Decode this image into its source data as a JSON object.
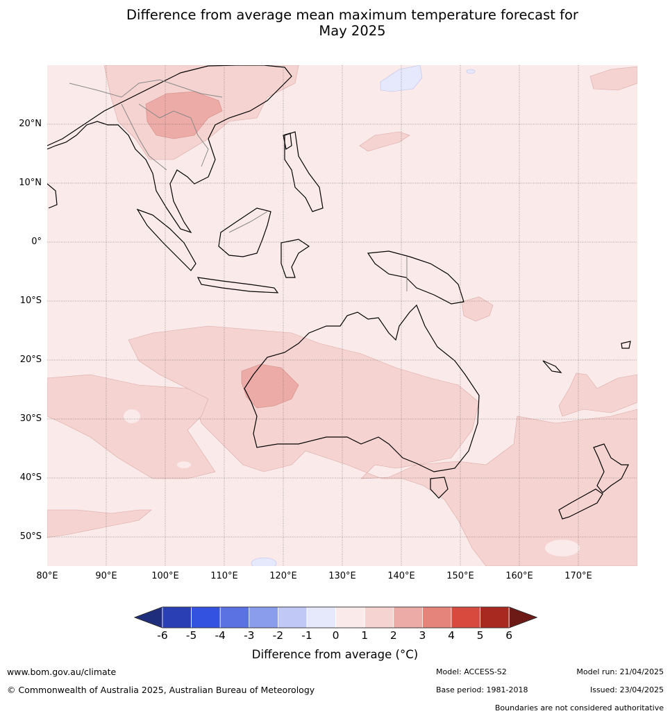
{
  "title_line1": "Difference from average mean maximum temperature forecast for",
  "title_line2": "May 2025",
  "lat_ticks": [
    "20°N",
    "10°N",
    "0°",
    "10°S",
    "20°S",
    "30°S",
    "40°S",
    "50°S"
  ],
  "lon_ticks": [
    "80°E",
    "90°E",
    "100°E",
    "110°E",
    "120°E",
    "130°E",
    "140°E",
    "150°E",
    "160°E",
    "170°E"
  ],
  "colorbar": {
    "labels": [
      "-6",
      "-5",
      "-4",
      "-3",
      "-2",
      "-1",
      "0",
      "1",
      "2",
      "3",
      "4",
      "5",
      "6"
    ],
    "colors": [
      "#1f2d7d",
      "#2a3fb3",
      "#3452e0",
      "#5b72e3",
      "#8a9ded",
      "#c0c8f5",
      "#e6e9fb",
      "#fbeaea",
      "#f5d3d1",
      "#ecaba6",
      "#e4847a",
      "#d84a3e",
      "#a8291f",
      "#6d1a16"
    ],
    "title": "Difference from average (°C)"
  },
  "footer": {
    "website": "www.bom.gov.au/climate",
    "copyright": "© Commonwealth of Australia 2025, Australian Bureau of Meteorology",
    "model": "Model: ACCESS-S2",
    "model_run": "Model run: 21/04/2025",
    "base_period": "Base period: 1981-2018",
    "issued": "Issued: 23/04/2025",
    "disclaimer": "Boundaries are not considered authoritative"
  }
}
